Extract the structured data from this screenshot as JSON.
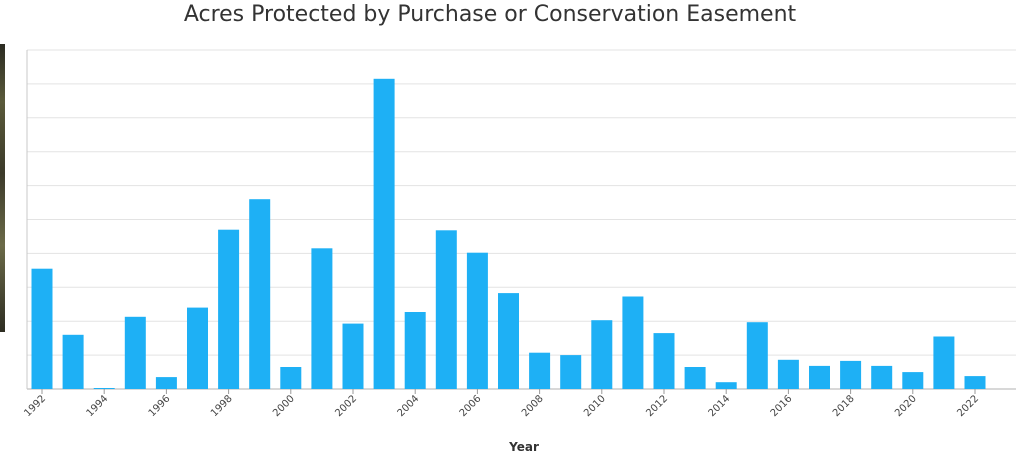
{
  "chart_data": {
    "type": "bar",
    "title": "Acres Protected by Purchase or Conservation Easement",
    "xlabel": "Year",
    "ylabel": "",
    "bar_color": "#1eb0f5",
    "grid": true,
    "ylim": [
      0,
      10
    ],
    "categories": [
      "1992",
      "1993",
      "1994",
      "1995",
      "1996",
      "1997",
      "1998",
      "1999",
      "2000",
      "2001",
      "2002",
      "2003",
      "2004",
      "2005",
      "2006",
      "2007",
      "2008",
      "2009",
      "2010",
      "2011",
      "2012",
      "2013",
      "2014",
      "2015",
      "2016",
      "2017",
      "2018",
      "2019",
      "2020",
      "2021",
      "2022"
    ],
    "tick_labels": [
      "1992",
      "1994",
      "1996",
      "1998",
      "2000",
      "2002",
      "2004",
      "2006",
      "2008",
      "2010",
      "2012",
      "2014",
      "2016",
      "2018",
      "2020",
      "2022"
    ],
    "values": [
      3.55,
      1.6,
      0.03,
      2.13,
      0.35,
      2.4,
      4.7,
      5.6,
      0.65,
      4.15,
      1.93,
      9.15,
      2.27,
      4.68,
      4.02,
      2.83,
      1.07,
      1.0,
      2.03,
      2.73,
      1.65,
      0.65,
      0.2,
      1.97,
      0.86,
      0.68,
      0.83,
      0.68,
      0.5,
      1.55,
      0.38
    ]
  }
}
